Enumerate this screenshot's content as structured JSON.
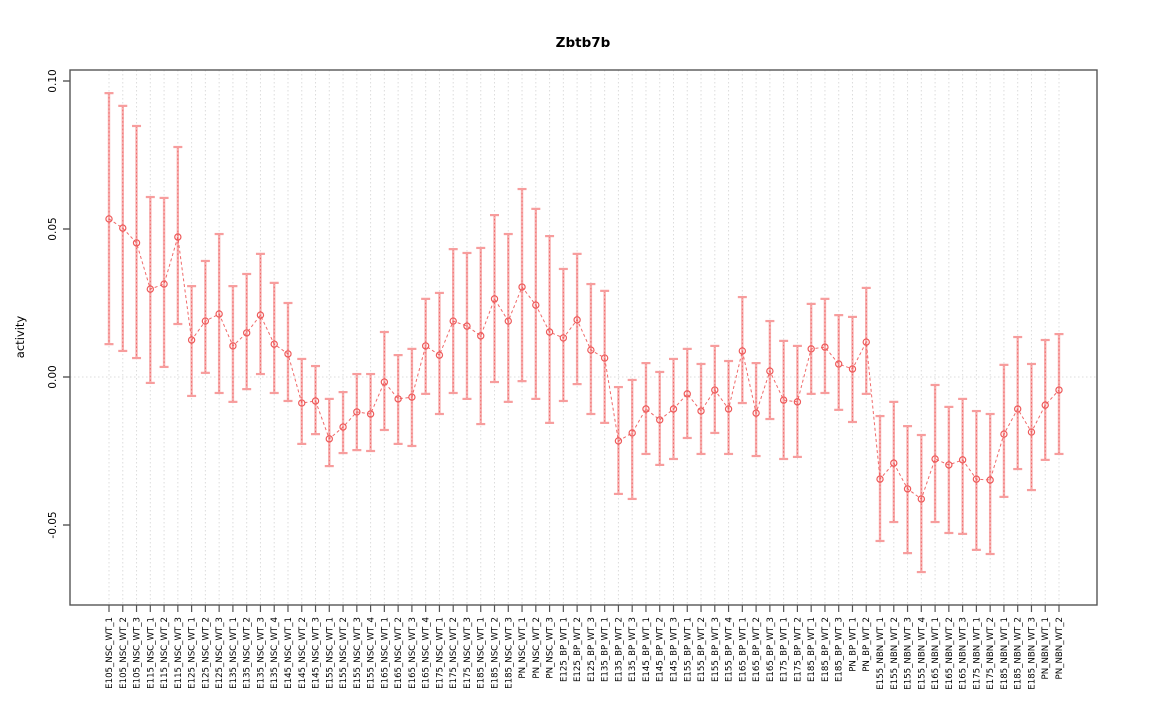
{
  "page": {
    "background": "#ffffff"
  },
  "chart_data": {
    "type": "scatter",
    "title": "Zbtb7b",
    "xlabel": "",
    "ylabel": "activity",
    "ylim": [
      -0.077,
      0.103
    ],
    "yticks": [
      0.1,
      0.05,
      0.0,
      -0.05
    ],
    "ytick_labels": [
      "0.10",
      "0.05",
      "0.00",
      "-0.05"
    ],
    "grid": {
      "vertical_category_lines": true,
      "zero_line": true,
      "style": "dotted"
    },
    "legend": "none",
    "point_style": "open-circle",
    "error_bar_caps": true,
    "connector_style": "dashed",
    "categories": [
      "E105_NSC_WT_1",
      "E105_NSC_WT_2",
      "E105_NSC_WT_3",
      "E115_NSC_WT_1",
      "E115_NSC_WT_2",
      "E115_NSC_WT_3",
      "E125_NSC_WT_1",
      "E125_NSC_WT_2",
      "E125_NSC_WT_3",
      "E135_NSC_WT_1",
      "E135_NSC_WT_2",
      "E135_NSC_WT_3",
      "E135_NSC_WT_4",
      "E145_NSC_WT_1",
      "E145_NSC_WT_2",
      "E145_NSC_WT_3",
      "E155_NSC_WT_1",
      "E155_NSC_WT_2",
      "E155_NSC_WT_3",
      "E155_NSC_WT_4",
      "E165_NSC_WT_1",
      "E165_NSC_WT_2",
      "E165_NSC_WT_3",
      "E165_NSC_WT_4",
      "E175_NSC_WT_1",
      "E175_NSC_WT_2",
      "E175_NSC_WT_3",
      "E185_NSC_WT_1",
      "E185_NSC_WT_2",
      "E185_NSC_WT_3",
      "PN_NSC_WT_1",
      "PN_NSC_WT_2",
      "PN_NSC_WT_3",
      "E125_BP_WT_1",
      "E125_BP_WT_2",
      "E125_BP_WT_3",
      "E135_BP_WT_1",
      "E135_BP_WT_2",
      "E135_BP_WT_3",
      "E145_BP_WT_1",
      "E145_BP_WT_2",
      "E145_BP_WT_3",
      "E155_BP_WT_1",
      "E155_BP_WT_2",
      "E155_BP_WT_3",
      "E155_BP_WT_4",
      "E165_BP_WT_1",
      "E165_BP_WT_2",
      "E165_BP_WT_3",
      "E175_BP_WT_1",
      "E175_BP_WT_2",
      "E185_BP_WT_1",
      "E185_BP_WT_2",
      "E185_BP_WT_3",
      "PN_BP_WT_1",
      "PN_BP_WT_2",
      "E155_NBN_WT_1",
      "E155_NBN_WT_2",
      "E155_NBN_WT_3",
      "E155_NBN_WT_4",
      "E165_NBN_WT_1",
      "E165_NBN_WT_2",
      "E165_NBN_WT_3",
      "E175_NBN_WT_1",
      "E175_NBN_WT_2",
      "E185_NBN_WT_1",
      "E185_NBN_WT_2",
      "E185_NBN_WT_3",
      "PN_NBN_WT_1",
      "PN_NBN_WT_2"
    ],
    "series": [
      {
        "name": "activity",
        "values": [
          0.0534,
          0.0503,
          0.0453,
          0.0297,
          0.0314,
          0.0473,
          0.0125,
          0.0189,
          0.0213,
          0.0105,
          0.0149,
          0.0209,
          0.0111,
          0.0078,
          -0.0088,
          -0.0081,
          -0.0209,
          -0.0169,
          -0.0118,
          -0.0125,
          -0.0017,
          -0.0074,
          -0.0068,
          0.0105,
          0.0074,
          0.0189,
          0.0172,
          0.0139,
          0.0264,
          0.0189,
          0.0304,
          0.0243,
          0.0152,
          0.0132,
          0.0193,
          0.0091,
          0.0064,
          -0.0216,
          -0.0189,
          -0.0108,
          -0.0145,
          -0.0108,
          -0.0057,
          -0.0115,
          -0.0044,
          -0.0108,
          0.0088,
          -0.0122,
          0.002,
          -0.0078,
          -0.0084,
          0.0095,
          0.0101,
          0.0044,
          0.0027,
          0.0118,
          -0.0345,
          -0.0291,
          -0.0378,
          -0.0412,
          -0.0277,
          -0.0297,
          -0.028,
          -0.0345,
          -0.0348,
          -0.0193,
          -0.0108,
          -0.0186,
          -0.0095,
          -0.0044
        ],
        "ci_high": [
          0.0959,
          0.0916,
          0.0848,
          0.0608,
          0.0605,
          0.0777,
          0.0307,
          0.0392,
          0.0483,
          0.0307,
          0.0348,
          0.0416,
          0.0318,
          0.025,
          0.0061,
          0.0037,
          -0.0074,
          -0.0051,
          0.001,
          0.001,
          0.0152,
          0.0074,
          0.0095,
          0.0264,
          0.0284,
          0.0432,
          0.0419,
          0.0436,
          0.0547,
          0.0483,
          0.0635,
          0.0568,
          0.0476,
          0.0365,
          0.0416,
          0.0314,
          0.0291,
          -0.0034,
          -0.001,
          0.0047,
          0.0017,
          0.0061,
          0.0095,
          0.0044,
          0.0105,
          0.0054,
          0.027,
          0.0047,
          0.0189,
          0.0122,
          0.0105,
          0.0247,
          0.0264,
          0.0209,
          0.0203,
          0.0301,
          -0.0132,
          -0.0084,
          -0.0166,
          -0.0196,
          -0.0027,
          -0.0101,
          -0.0074,
          -0.0115,
          -0.0125,
          0.0041,
          0.0135,
          0.0044,
          0.0125,
          0.0145
        ],
        "ci_low": [
          0.0111,
          0.0088,
          0.0064,
          -0.002,
          0.0034,
          0.0179,
          -0.0064,
          0.0014,
          -0.0054,
          -0.0084,
          -0.0041,
          0.001,
          -0.0054,
          -0.0081,
          -0.0226,
          -0.0193,
          -0.0301,
          -0.0257,
          -0.0247,
          -0.025,
          -0.0179,
          -0.0226,
          -0.0233,
          -0.0057,
          -0.0125,
          -0.0054,
          -0.0074,
          -0.0159,
          -0.0017,
          -0.0084,
          -0.0014,
          -0.0074,
          -0.0155,
          -0.0081,
          -0.0024,
          -0.0125,
          -0.0155,
          -0.0395,
          -0.0412,
          -0.026,
          -0.0297,
          -0.0277,
          -0.0206,
          -0.026,
          -0.0189,
          -0.026,
          -0.0088,
          -0.0267,
          -0.0142,
          -0.0277,
          -0.027,
          -0.0057,
          -0.0054,
          -0.0111,
          -0.0152,
          -0.0057,
          -0.0554,
          -0.049,
          -0.0595,
          -0.0659,
          -0.049,
          -0.0527,
          -0.053,
          -0.0584,
          -0.0598,
          -0.0405,
          -0.0311,
          -0.0382,
          -0.028,
          -0.026
        ]
      }
    ],
    "colors": {
      "point": "#ee5a5a",
      "connector": "#ee5a5a",
      "error_bar": "#f79d9d",
      "error_bar_dotted": "#ee5a5a",
      "grid": "#dcdcdc",
      "axis": "#555555",
      "text": "#000000",
      "background": "#ffffff"
    }
  }
}
